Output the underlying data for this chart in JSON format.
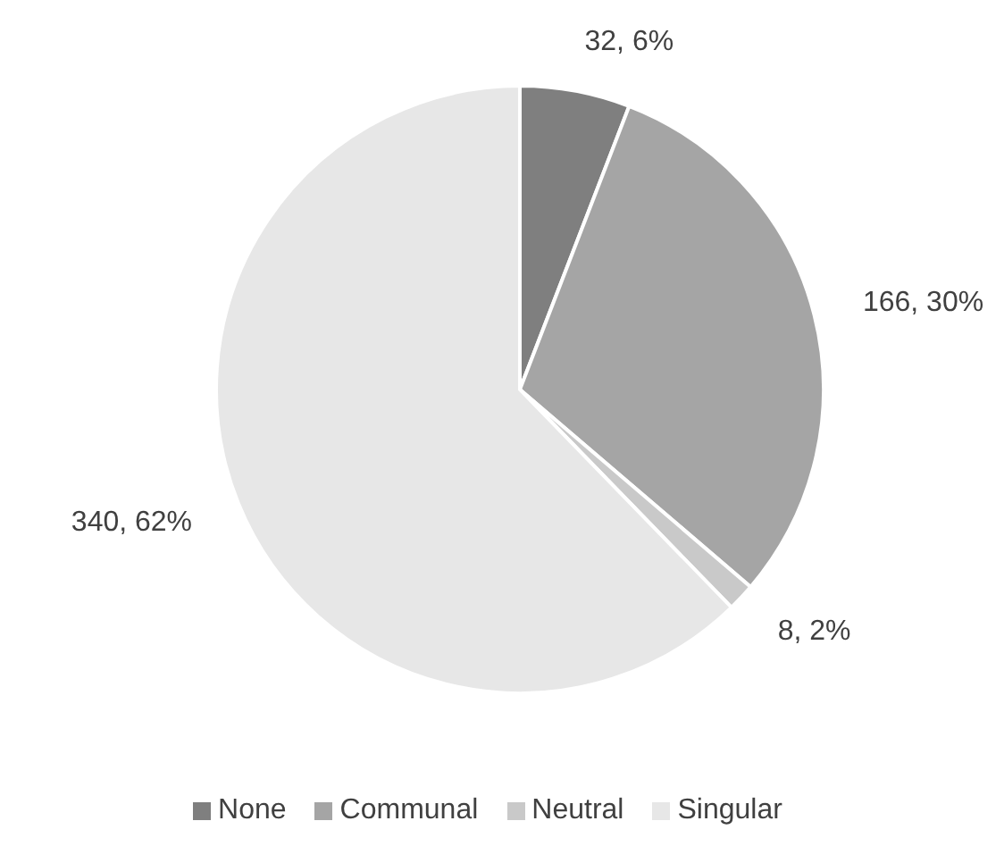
{
  "chart_data": {
    "type": "pie",
    "categories": [
      "None",
      "Communal",
      "Neutral",
      "Singular"
    ],
    "values": [
      32,
      166,
      8,
      340
    ],
    "colors": [
      "#7f7f7f",
      "#a5a5a5",
      "#c9c9c9",
      "#e7e7e7"
    ],
    "value_labels": [
      "32, 6%",
      "166, 30%",
      "8, 2%",
      "340, 62%"
    ],
    "legend": "bottom"
  }
}
